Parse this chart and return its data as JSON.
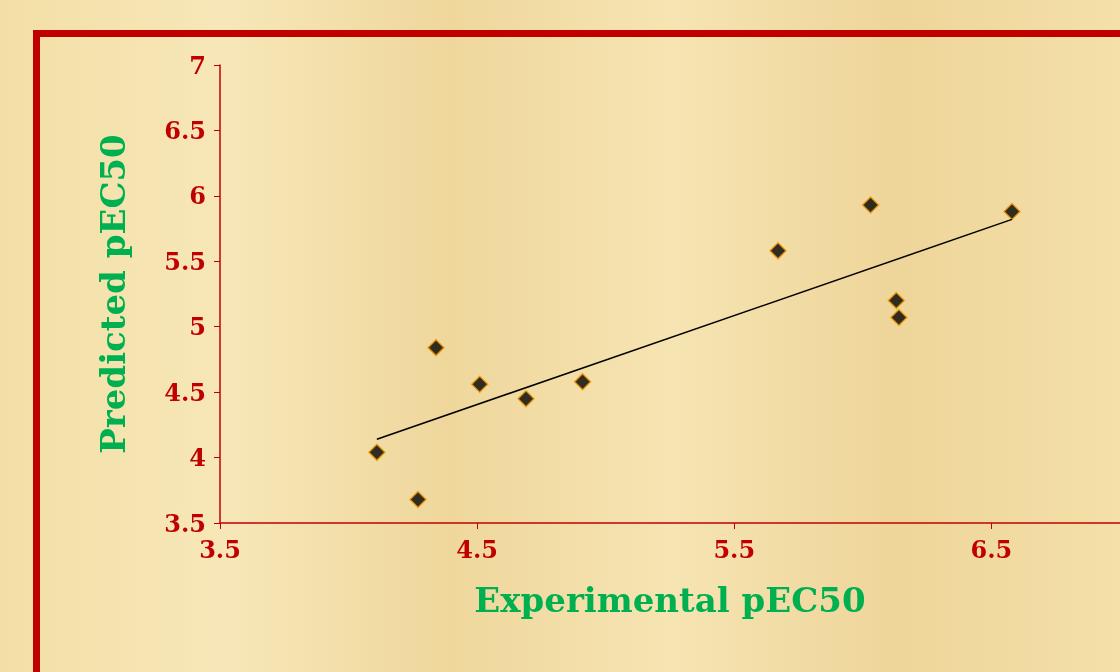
{
  "chart_data": {
    "type": "scatter",
    "xlabel": "Experimental pEC50",
    "ylabel": "Predicted pEC50",
    "xlim": [
      3.5,
      7
    ],
    "xticks": [
      3.5,
      4.5,
      5.5,
      6.5
    ],
    "ylim": [
      3.5,
      7
    ],
    "yticks": [
      3.5,
      4,
      4.5,
      5,
      5.5,
      6,
      6.5,
      7
    ],
    "grid": false,
    "marker": "diamond",
    "series": [
      {
        "color": "#000000",
        "x": [
          4.11,
          4.27,
          4.34,
          4.51,
          4.69,
          4.91,
          5.67,
          6.03,
          6.13,
          6.14,
          6.58
        ],
        "values": [
          4.04,
          3.68,
          4.84,
          4.56,
          4.45,
          4.58,
          5.58,
          5.93,
          5.2,
          5.07,
          5.88
        ]
      },
      {
        "type": "line",
        "color": "#000000",
        "marker": "none",
        "x": [
          4.11,
          6.58
        ],
        "values": [
          4.14,
          5.82
        ]
      }
    ]
  }
}
